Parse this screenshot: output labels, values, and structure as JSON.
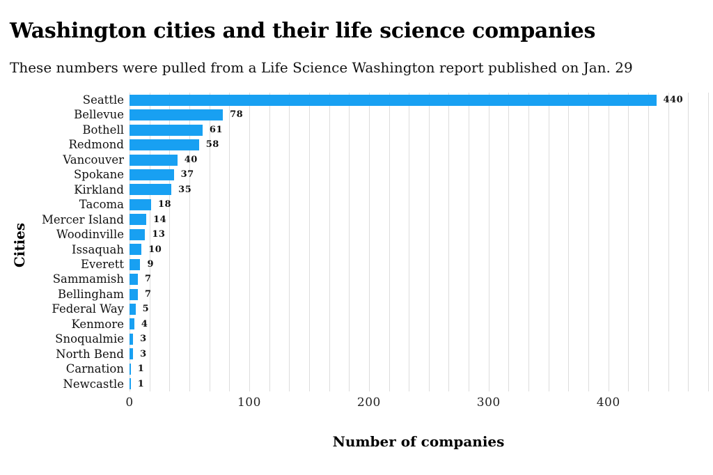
{
  "header": {
    "title": "Washington cities and their life science companies",
    "subtitle": "These numbers were pulled from a Life Science Washington report published on Jan. 29"
  },
  "chart_data": {
    "type": "bar",
    "orientation": "horizontal",
    "title": "Washington cities and their life science companies",
    "subtitle": "These numbers were pulled from a Life Science Washington report published on Jan. 29",
    "xlabel": "Number of companies",
    "ylabel": "Cities",
    "categories": [
      "Seattle",
      "Bellevue",
      "Bothell",
      "Redmond",
      "Vancouver",
      "Spokane",
      "Kirkland",
      "Tacoma",
      "Mercer Island",
      "Woodinville",
      "Issaquah",
      "Everett",
      "Sammamish",
      "Bellingham",
      "Federal Way",
      "Kenmore",
      "Snoqualmie",
      "North Bend",
      "Carnation",
      "Newcastle"
    ],
    "values": [
      440,
      78,
      61,
      58,
      40,
      37,
      35,
      18,
      14,
      13,
      10,
      9,
      7,
      7,
      5,
      4,
      3,
      3,
      1,
      1
    ],
    "xticks": [
      0,
      100,
      200,
      300,
      400
    ],
    "xlim": [
      0,
      483.33
    ],
    "grid": {
      "show": true,
      "minor_interval": 16.6667,
      "color": "#dcdcdc"
    },
    "legend": "none",
    "colors": {
      "bar": "#18A0F2",
      "title_text": "#000000",
      "label_text": "#111111",
      "tick_text": "#222222"
    }
  }
}
